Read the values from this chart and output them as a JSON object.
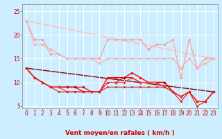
{
  "background_color": "#cceeff",
  "grid_color": "#ffffff",
  "xlabel": "Vent moyen/en rafales ( km/h )",
  "x_ticks": [
    0,
    1,
    2,
    3,
    4,
    5,
    6,
    7,
    8,
    9,
    10,
    11,
    12,
    13,
    14,
    15,
    16,
    17,
    18,
    19,
    20,
    21,
    22,
    23
  ],
  "ylim": [
    4.5,
    26.5
  ],
  "yticks": [
    5,
    10,
    15,
    20,
    25
  ],
  "lines": [
    {
      "x": [
        0,
        1,
        2,
        3,
        4,
        5,
        6,
        7,
        8,
        9,
        10,
        11,
        12,
        13,
        14,
        15,
        16,
        17,
        18,
        19,
        20,
        21,
        22,
        23
      ],
      "y": [
        23,
        19,
        19,
        16,
        16,
        15,
        15,
        15,
        15,
        15,
        19,
        19,
        19,
        19,
        19,
        17,
        18,
        18,
        19,
        11,
        19,
        13,
        15,
        15
      ],
      "color": "#ff9999",
      "linewidth": 0.8,
      "marker": "D",
      "markersize": 1.8,
      "zorder": 2
    },
    {
      "x": [
        0,
        1,
        2,
        3,
        4,
        5,
        6,
        7,
        8,
        9,
        10,
        11,
        12,
        13,
        14,
        15,
        16,
        17,
        18,
        19,
        20,
        21,
        22,
        23
      ],
      "y": [
        23,
        18,
        18,
        17,
        16,
        15,
        15,
        15,
        15,
        14,
        15,
        15,
        15,
        15,
        15,
        15,
        15,
        15,
        15,
        13,
        15,
        13,
        14,
        15
      ],
      "color": "#ffaaaa",
      "linewidth": 0.8,
      "marker": "D",
      "markersize": 1.8,
      "zorder": 2
    },
    {
      "x": [
        0,
        1,
        2,
        3,
        4,
        5,
        6,
        7,
        8,
        9,
        10,
        11,
        12,
        13,
        14,
        15,
        16,
        17,
        18,
        19,
        20,
        21,
        22,
        23
      ],
      "y": [
        13,
        11,
        10,
        9,
        9,
        9,
        9,
        8,
        8,
        8,
        11,
        11,
        11,
        12,
        11,
        10,
        10,
        10,
        8,
        7,
        8,
        6,
        6,
        8
      ],
      "color": "#ff0000",
      "linewidth": 1.0,
      "marker": "D",
      "markersize": 1.8,
      "zorder": 3
    },
    {
      "x": [
        0,
        1,
        2,
        3,
        4,
        5,
        6,
        7,
        8,
        9,
        10,
        11,
        12,
        13,
        14,
        15,
        16,
        17,
        18,
        19,
        20,
        21,
        22,
        23
      ],
      "y": [
        13,
        11,
        10,
        9,
        9,
        9,
        9,
        9,
        8,
        8,
        10,
        10,
        11,
        11,
        10,
        10,
        10,
        10,
        8,
        7,
        8,
        6,
        6,
        8
      ],
      "color": "#cc0000",
      "linewidth": 0.8,
      "marker": "D",
      "markersize": 1.8,
      "zorder": 3
    },
    {
      "x": [
        0,
        1,
        2,
        3,
        4,
        5,
        6,
        7,
        8,
        9,
        10,
        11,
        12,
        13,
        14,
        15,
        16,
        17,
        18,
        19,
        20,
        21,
        22,
        23
      ],
      "y": [
        13,
        11,
        10,
        9,
        9,
        8,
        8,
        8,
        8,
        8,
        10,
        10,
        10,
        11,
        10,
        10,
        10,
        9,
        8,
        7,
        8,
        6,
        6,
        8
      ],
      "color": "#ff3333",
      "linewidth": 0.8,
      "marker": "D",
      "markersize": 1.8,
      "zorder": 3
    },
    {
      "x": [
        0,
        1,
        2,
        3,
        4,
        5,
        6,
        7,
        8,
        9,
        10,
        11,
        12,
        13,
        14,
        15,
        16,
        17,
        18,
        19,
        20,
        21,
        22,
        23
      ],
      "y": [
        13,
        11,
        10,
        9,
        8,
        8,
        8,
        8,
        8,
        8,
        9,
        9,
        9,
        9,
        9,
        9,
        9,
        9,
        8,
        6,
        8,
        5,
        6,
        8
      ],
      "color": "#dd2222",
      "linewidth": 0.8,
      "marker": "D",
      "markersize": 1.6,
      "zorder": 3
    },
    {
      "x": [
        0,
        23
      ],
      "y": [
        13,
        8
      ],
      "color": "#880000",
      "linewidth": 1.0,
      "marker": null,
      "markersize": 0,
      "zorder": 1
    },
    {
      "x": [
        0,
        23
      ],
      "y": [
        23,
        15
      ],
      "color": "#ffbbbb",
      "linewidth": 1.0,
      "marker": null,
      "markersize": 0,
      "zorder": 1
    }
  ],
  "arrow_color": "#ff6666",
  "axis_label_fontsize": 6.5,
  "tick_fontsize": 5.5
}
